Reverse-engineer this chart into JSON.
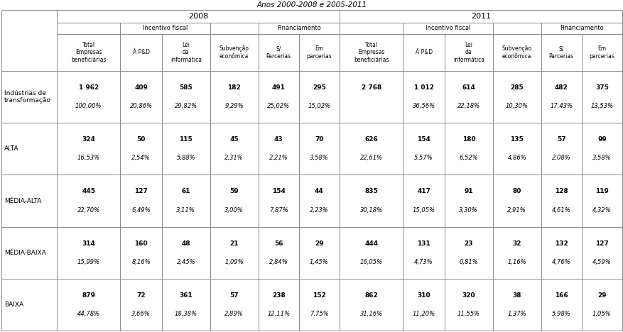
{
  "title": "Anos 2000-2008 e 2005-2011",
  "rows": [
    {
      "label": "Indústrias de\ntransformação",
      "values": [
        "1 962",
        "409",
        "585",
        "182",
        "491",
        "295",
        "2 768",
        "1 012",
        "614",
        "285",
        "482",
        "375"
      ],
      "pcts": [
        "100,00%",
        "20,86%",
        "29,82%",
        "9,29%",
        "25,02%",
        "15,02%",
        "",
        "36,56%",
        "22,18%",
        "10,30%",
        "17,43%",
        "13,53%"
      ]
    },
    {
      "label": "ALTA",
      "values": [
        "324",
        "50",
        "115",
        "45",
        "43",
        "70",
        "626",
        "154",
        "180",
        "135",
        "57",
        "99"
      ],
      "pcts": [
        "16,53%",
        "2,54%",
        "5,88%",
        "2,31%",
        "2,21%",
        "3,58%",
        "22,61%",
        "5,57%",
        "6,52%",
        "4,86%",
        "2,08%",
        "3,58%"
      ]
    },
    {
      "label": "MÉDIA-ALTA",
      "values": [
        "445",
        "127",
        "61",
        "59",
        "154",
        "44",
        "835",
        "417",
        "91",
        "80",
        "128",
        "119"
      ],
      "pcts": [
        "22,70%",
        "6,49%",
        "3,11%",
        "3,00%",
        "7,87%",
        "2,23%",
        "30,18%",
        "15,05%",
        "3,30%",
        "2,91%",
        "4,61%",
        "4,32%"
      ]
    },
    {
      "label": "MÉDIA-BAIXA",
      "values": [
        "314",
        "160",
        "48",
        "21",
        "56",
        "29",
        "444",
        "131",
        "23",
        "32",
        "132",
        "127"
      ],
      "pcts": [
        "15,99%",
        "8,16%",
        "2,45%",
        "1,09%",
        "2,84%",
        "1,45%",
        "16,05%",
        "4,73%",
        "0,81%",
        "1,16%",
        "4,76%",
        "4,59%"
      ]
    },
    {
      "label": "BAIXA",
      "values": [
        "879",
        "72",
        "361",
        "57",
        "238",
        "152",
        "862",
        "310",
        "320",
        "38",
        "166",
        "29"
      ],
      "pcts": [
        "44,78%",
        "3,66%",
        "18,38%",
        "2,89%",
        "12,11%",
        "7,75%",
        "31,16%",
        "11,20%",
        "11,55%",
        "1,37%",
        "5,98%",
        "1,05%"
      ]
    }
  ],
  "col_headers": [
    "Total\nEmpresas\nbeneficiárias",
    "Á P&D",
    "Lei\nda\ninformática",
    "Subvenção\neconômica",
    "S/\nParcerias",
    "Em\nparcerias",
    "Total\nEmpresas\nbeneficiárias",
    "Á P&D",
    "Lei\nda\ninformática",
    "Subvenção\neconômica",
    "S/\nParcerias",
    "Em\nparcerias"
  ],
  "line_color": "#888888",
  "lw": 0.7,
  "title_fontsize": 7.5,
  "header_fontsize": 6.0,
  "data_fontsize": 6.5,
  "pct_fontsize": 6.0,
  "label_fontsize": 6.5
}
